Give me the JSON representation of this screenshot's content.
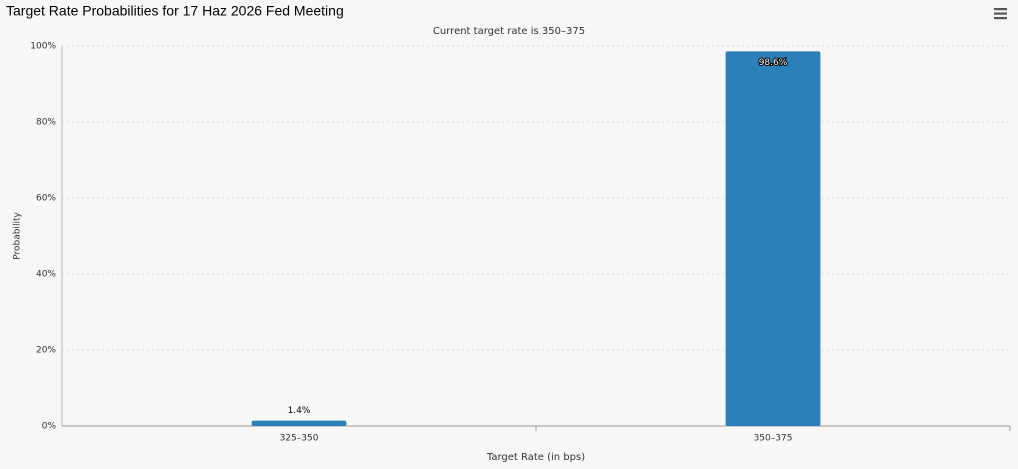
{
  "chart_data": {
    "type": "bar",
    "title": "Target Rate Probabilities for 17 Haz 2026 Fed Meeting",
    "subtitle": "Current target rate is 350–375",
    "x_label": "Target Rate (in bps)",
    "y_label": "Probability",
    "categories": [
      "325–350",
      "350–375"
    ],
    "values": [
      1.4,
      98.6
    ],
    "value_labels": [
      "1.4%",
      "98.6%"
    ],
    "color": "#2b80b9",
    "ylim": [
      0,
      100
    ],
    "yticks": [
      {
        "value": 0,
        "label": "0%"
      },
      {
        "value": 20,
        "label": "20%"
      },
      {
        "value": 40,
        "label": "40%"
      },
      {
        "value": 60,
        "label": "60%"
      },
      {
        "value": 80,
        "label": "80%"
      },
      {
        "value": 100,
        "label": "100%"
      }
    ],
    "grid": true
  }
}
